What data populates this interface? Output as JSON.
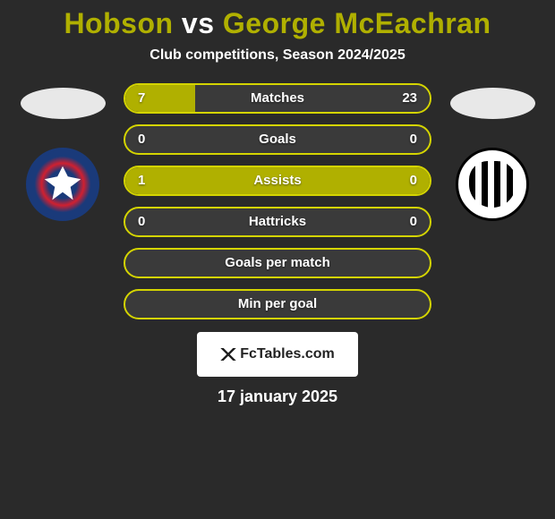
{
  "title": {
    "player1": "Hobson",
    "vs": "vs",
    "player2": "George McEachran"
  },
  "subtitle": "Club competitions, Season 2024/2025",
  "colors": {
    "background": "#2a2a2a",
    "accent": "#b0b000",
    "accent_border": "#d4d400",
    "bar_bg": "#3a3a3a",
    "text": "#ffffff"
  },
  "bars": [
    {
      "label": "Matches",
      "left_value": "7",
      "right_value": "23",
      "left_pct": 23,
      "right_pct": 77,
      "left_color": "#b0b000",
      "right_color": "#3a3a3a",
      "border_color": "#d4d400"
    },
    {
      "label": "Goals",
      "left_value": "0",
      "right_value": "0",
      "left_pct": 0,
      "right_pct": 0,
      "left_color": "#3a3a3a",
      "right_color": "#3a3a3a",
      "border_color": "#d4d400"
    },
    {
      "label": "Assists",
      "left_value": "1",
      "right_value": "0",
      "left_pct": 100,
      "right_pct": 0,
      "left_color": "#b0b000",
      "right_color": "#3a3a3a",
      "border_color": "#d4d400"
    },
    {
      "label": "Hattricks",
      "left_value": "0",
      "right_value": "0",
      "left_pct": 0,
      "right_pct": 0,
      "left_color": "#3a3a3a",
      "right_color": "#3a3a3a",
      "border_color": "#d4d400"
    },
    {
      "label": "Goals per match",
      "left_value": "",
      "right_value": "",
      "left_pct": 0,
      "right_pct": 0,
      "left_color": "#3a3a3a",
      "right_color": "#3a3a3a",
      "border_color": "#d4d400"
    },
    {
      "label": "Min per goal",
      "left_value": "",
      "right_value": "",
      "left_pct": 0,
      "right_pct": 0,
      "left_color": "#3a3a3a",
      "right_color": "#3a3a3a",
      "border_color": "#d4d400"
    }
  ],
  "watermark": "FcTables.com",
  "date": "17 january 2025"
}
